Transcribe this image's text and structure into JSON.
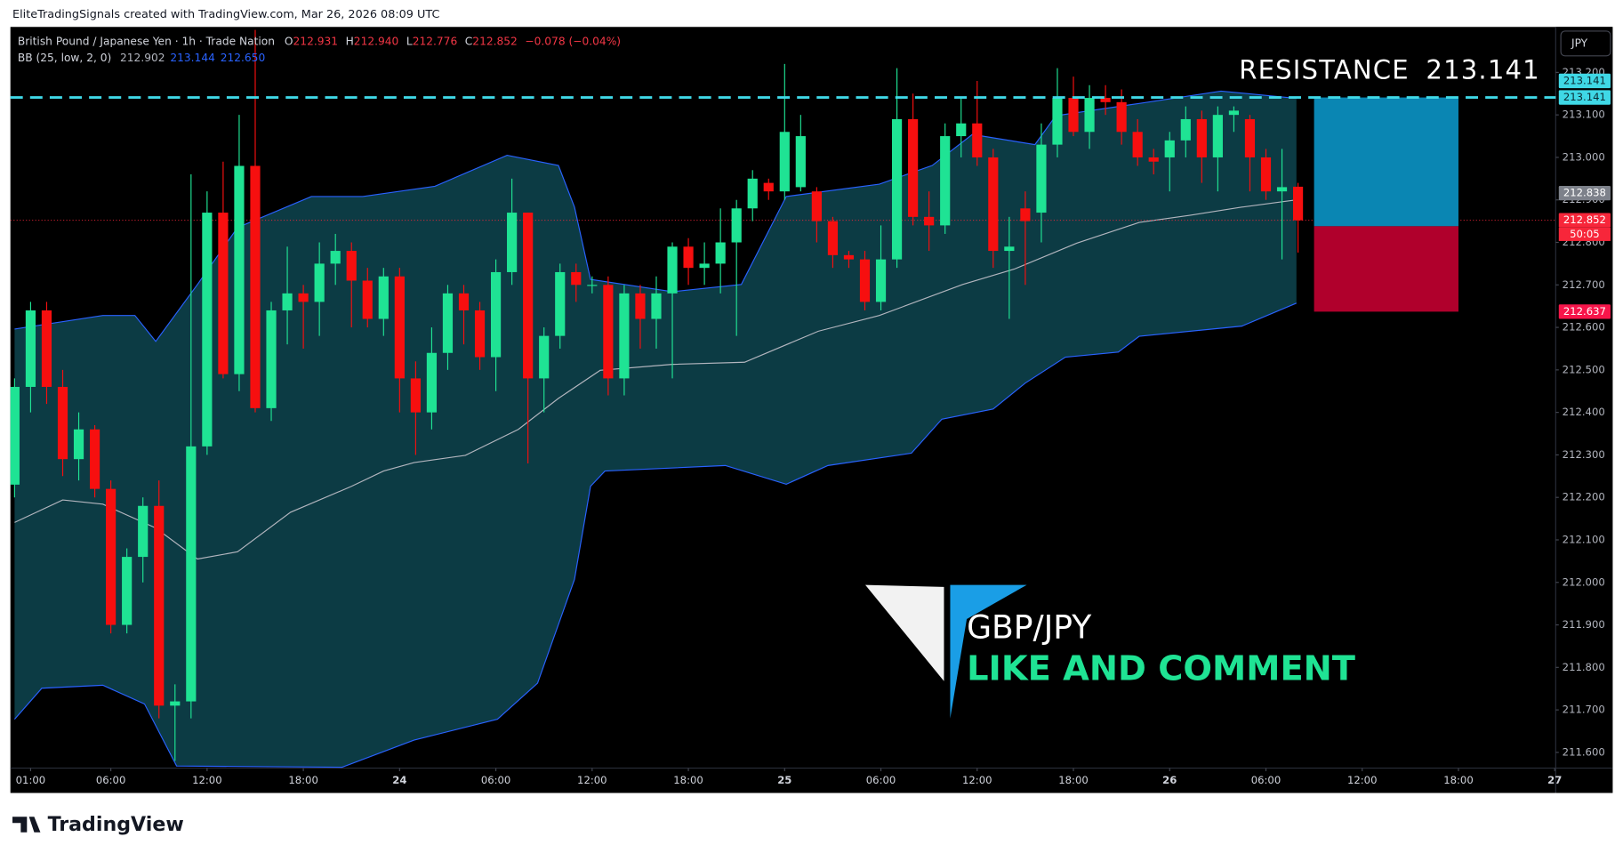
{
  "header": {
    "credit": "EliteTradingSignals created with TradingView.com, Mar 26, 2026 08:09 UTC"
  },
  "footer": {
    "brand": "TradingView"
  },
  "currency_button": "JPY",
  "chart_data": {
    "type": "candlestick",
    "legend": {
      "symbol": "British Pound / Japanese Yen · 1h · Trade Nation",
      "items": [
        {
          "label": "O",
          "value": "212.931"
        },
        {
          "label": "H",
          "value": "212.940"
        },
        {
          "label": "L",
          "value": "212.776"
        },
        {
          "label": "C",
          "value": "212.852"
        }
      ],
      "change": "−0.078 (−0.04%)",
      "indicator": "BB (25, low, 2, 0)",
      "indicator_values": [
        {
          "value": "212.902",
          "color": "#b2b5be"
        },
        {
          "value": "213.144",
          "color": "#2962ff"
        },
        {
          "value": "212.650",
          "color": "#2962ff"
        }
      ]
    },
    "xlim": [
      -0.26,
      96.06
    ],
    "ylim": [
      211.563,
      213.307
    ],
    "xticks": [
      {
        "value": 1,
        "label": "01:00"
      },
      {
        "value": 6,
        "label": "06:00"
      },
      {
        "value": 12,
        "label": "12:00"
      },
      {
        "value": 18,
        "label": "18:00"
      },
      24,
      {
        "value": 30,
        "label": "06:00"
      },
      {
        "value": 36,
        "label": "12:00"
      },
      {
        "value": 42,
        "label": "18:00"
      },
      {
        "value": 48,
        "label": "25"
      },
      {
        "value": 54,
        "label": "06:00"
      },
      {
        "value": 60,
        "label": "12:00"
      },
      {
        "value": 66,
        "label": "18:00"
      },
      {
        "value": 72,
        "label": "26"
      },
      {
        "value": 78,
        "label": "06:00"
      },
      {
        "value": 84,
        "label": "12:00"
      },
      {
        "value": 90,
        "label": "18:00"
      },
      {
        "value": 96,
        "label": "27"
      }
    ],
    "yticks": [
      {
        "value": 213.2,
        "label": "213.200"
      },
      {
        "value": 213.1,
        "label": "213.100"
      },
      {
        "value": 213.0,
        "label": "213.000"
      },
      {
        "value": 212.9,
        "label": "212.900"
      },
      {
        "value": 212.8,
        "label": "212.800"
      },
      {
        "value": 212.7,
        "label": "212.700"
      },
      {
        "value": 212.6,
        "label": "212.600"
      },
      {
        "value": 212.5,
        "label": "212.500"
      },
      {
        "value": 212.4,
        "label": "212.400"
      },
      {
        "value": 212.3,
        "label": "212.300"
      },
      {
        "value": 212.2,
        "label": "212.200"
      },
      {
        "value": 212.1,
        "label": "212.100"
      },
      {
        "value": 212.0,
        "label": "212.000"
      },
      {
        "value": 211.9,
        "label": "211.900"
      },
      {
        "value": 211.8,
        "label": "211.800"
      },
      {
        "value": 211.7,
        "label": "211.700"
      },
      {
        "value": 211.6,
        "label": "211.600"
      }
    ],
    "grid": false,
    "up_color": "#1fe394",
    "down_color": "#f70f0f",
    "x": [
      0,
      1,
      2,
      3,
      4,
      5,
      6,
      7,
      8,
      9,
      10,
      11,
      12,
      13,
      14,
      15,
      16,
      17,
      18,
      19,
      20,
      21,
      22,
      23,
      24,
      25,
      26,
      27,
      28,
      29,
      30,
      31,
      32,
      33,
      34,
      35,
      36,
      37,
      38,
      39,
      40,
      41,
      42,
      43,
      44,
      45,
      46,
      47,
      48,
      49,
      50,
      51,
      52,
      53,
      54,
      55,
      56,
      57,
      58,
      59,
      60,
      61,
      62,
      63,
      64,
      65,
      66,
      67,
      68,
      69,
      70,
      71,
      72,
      73,
      74,
      75,
      76,
      77,
      78,
      79,
      80
    ],
    "open": [
      212.23,
      212.46,
      212.64,
      212.46,
      212.29,
      212.36,
      212.22,
      211.9,
      212.06,
      212.18,
      211.71,
      211.72,
      212.32,
      212.87,
      212.49,
      212.98,
      212.41,
      212.64,
      212.68,
      212.66,
      212.75,
      212.78,
      212.71,
      212.62,
      212.72,
      212.48,
      212.4,
      212.54,
      212.68,
      212.64,
      212.53,
      212.73,
      212.87,
      212.48,
      212.58,
      212.73,
      212.7,
      212.7,
      212.48,
      212.68,
      212.62,
      212.68,
      212.79,
      212.74,
      212.75,
      212.8,
      212.88,
      212.94,
      212.92,
      212.93,
      212.92,
      212.85,
      212.77,
      212.76,
      212.66,
      212.76,
      213.09,
      212.86,
      212.84,
      213.05,
      213.08,
      213.0,
      212.78,
      212.88,
      212.87,
      213.03,
      213.14,
      213.06,
      213.14,
      213.13,
      213.06,
      213.0,
      213.0,
      213.04,
      213.09,
      213.0,
      213.1,
      213.09,
      213.0,
      212.92,
      212.931
    ],
    "high": [
      212.48,
      212.66,
      212.66,
      212.5,
      212.4,
      212.37,
      212.24,
      212.08,
      212.2,
      212.24,
      211.76,
      212.96,
      212.92,
      212.99,
      213.1,
      213.3,
      212.66,
      212.79,
      212.7,
      212.8,
      212.82,
      212.8,
      212.74,
      212.74,
      212.74,
      212.52,
      212.6,
      212.7,
      212.7,
      212.66,
      212.76,
      212.95,
      212.87,
      212.6,
      212.75,
      212.75,
      212.72,
      212.72,
      212.7,
      212.7,
      212.72,
      212.8,
      212.81,
      212.8,
      212.88,
      212.9,
      212.97,
      212.95,
      213.22,
      213.1,
      212.93,
      212.86,
      212.78,
      212.78,
      212.84,
      213.21,
      213.15,
      212.92,
      213.08,
      213.14,
      213.18,
      213.02,
      212.86,
      212.92,
      213.08,
      213.21,
      213.19,
      213.17,
      213.17,
      213.16,
      213.09,
      213.02,
      213.06,
      213.12,
      213.11,
      213.12,
      213.12,
      213.1,
      213.02,
      213.02,
      212.94
    ],
    "low": [
      212.2,
      212.4,
      212.42,
      212.25,
      212.24,
      212.2,
      211.88,
      211.88,
      212.0,
      211.68,
      211.58,
      211.68,
      212.3,
      212.48,
      212.45,
      212.4,
      212.38,
      212.56,
      212.55,
      212.58,
      212.7,
      212.6,
      212.6,
      212.58,
      212.4,
      212.3,
      212.36,
      212.5,
      212.56,
      212.5,
      212.45,
      212.7,
      212.28,
      212.4,
      212.55,
      212.66,
      212.68,
      212.44,
      212.44,
      212.55,
      212.55,
      212.48,
      212.7,
      212.7,
      212.68,
      212.58,
      212.85,
      212.9,
      212.9,
      212.92,
      212.8,
      212.74,
      212.74,
      212.64,
      212.64,
      212.74,
      212.84,
      212.78,
      212.82,
      213.0,
      212.98,
      212.74,
      212.62,
      212.7,
      212.8,
      213.0,
      213.05,
      213.02,
      213.1,
      213.03,
      212.98,
      212.96,
      212.92,
      213.0,
      212.94,
      212.92,
      213.06,
      212.92,
      212.9,
      212.76,
      212.776
    ],
    "close": [
      212.46,
      212.64,
      212.46,
      212.29,
      212.36,
      212.22,
      211.9,
      212.06,
      212.18,
      211.71,
      211.72,
      212.32,
      212.87,
      212.49,
      212.98,
      212.41,
      212.64,
      212.68,
      212.66,
      212.75,
      212.78,
      212.71,
      212.62,
      212.72,
      212.48,
      212.4,
      212.54,
      212.68,
      212.64,
      212.53,
      212.73,
      212.87,
      212.48,
      212.58,
      212.73,
      212.7,
      212.7,
      212.48,
      212.68,
      212.62,
      212.68,
      212.79,
      212.74,
      212.75,
      212.8,
      212.88,
      212.95,
      212.92,
      213.06,
      213.05,
      212.85,
      212.77,
      212.76,
      212.66,
      212.76,
      213.09,
      212.86,
      212.84,
      213.05,
      213.08,
      213.0,
      212.78,
      212.79,
      212.85,
      213.03,
      213.14,
      213.06,
      213.14,
      213.13,
      213.06,
      213.0,
      212.99,
      213.04,
      213.09,
      213.0,
      213.1,
      213.11,
      213.0,
      212.92,
      212.93,
      212.852
    ],
    "band_fill": "#0c3b44",
    "bands": [
      {
        "color": "#2962ff",
        "x": [
          0,
          5.5,
          7.5,
          8.8,
          11.4,
          13.9,
          18.5,
          21.7,
          26.2,
          30.7,
          33.9,
          34.9,
          35.9,
          41.0,
          45.3,
          48.1,
          53.9,
          57.2,
          59.7,
          63.6,
          64.9,
          70.1,
          75.2,
          79.9
        ],
        "values": [
          212.596,
          212.628,
          212.628,
          212.567,
          212.701,
          212.835,
          212.908,
          212.908,
          212.932,
          213.005,
          212.981,
          212.883,
          212.713,
          212.684,
          212.701,
          212.908,
          212.937,
          212.981,
          213.054,
          213.03,
          213.098,
          213.127,
          213.156,
          213.139
        ]
      },
      {
        "color": "#b2b5be",
        "x": [
          0,
          3.0,
          5.5,
          8.8,
          11.4,
          13.9,
          17.2,
          21.0,
          23.0,
          24.9,
          28.1,
          31.4,
          33.9,
          36.5,
          41.0,
          45.5,
          50.1,
          53.9,
          59.1,
          62.3,
          66.2,
          70.1,
          73.3,
          76.5,
          79.9
        ],
        "values": [
          212.141,
          212.194,
          212.184,
          212.128,
          212.055,
          212.072,
          212.165,
          212.226,
          212.262,
          212.282,
          212.299,
          212.36,
          212.433,
          212.499,
          212.513,
          212.518,
          212.591,
          212.628,
          212.701,
          212.737,
          212.798,
          212.847,
          212.864,
          212.883,
          212.9
        ]
      },
      {
        "color": "#2962ff",
        "x": [
          0,
          1.7,
          5.5,
          8.1,
          10.1,
          20.4,
          24.9,
          30.1,
          32.6,
          34.9,
          35.9,
          36.8,
          44.3,
          48.1,
          50.7,
          55.9,
          57.8,
          61.0,
          63.0,
          65.5,
          68.8,
          70.1,
          76.5,
          79.9
        ],
        "values": [
          211.678,
          211.751,
          211.758,
          211.714,
          211.568,
          211.565,
          211.629,
          211.678,
          211.763,
          212.007,
          212.226,
          212.262,
          212.275,
          212.231,
          212.275,
          212.304,
          212.384,
          212.408,
          212.469,
          212.53,
          212.542,
          212.579,
          212.603,
          212.657
        ]
      }
    ],
    "resistance": {
      "label": "RESISTANCE",
      "value": 213.141,
      "color": "#3fd8e6"
    },
    "position": {
      "x_start": 81,
      "x_end": 90,
      "entry": 212.838,
      "target": 213.141,
      "stop": 212.637,
      "target_color": "#0a86b3",
      "stop_color": "#b0002c"
    },
    "last_price": {
      "value": 212.852,
      "countdown": "50:05",
      "color": "#f7263a"
    },
    "price_tags": [
      {
        "value": 213.141,
        "color": "#3fd8e6",
        "text_color": "#0b2a33"
      },
      {
        "value": 213.141,
        "color": "#3fd8e6",
        "text_color": "#0b2a33"
      },
      {
        "value": 212.838,
        "color": "#7d818a",
        "text_color": "#ffffff"
      },
      {
        "value": 212.637,
        "color": "#f7154a",
        "text_color": "#ffffff"
      }
    ],
    "watermark": {
      "pair": "GBP/JPY",
      "call": "LIKE AND COMMENT"
    }
  }
}
